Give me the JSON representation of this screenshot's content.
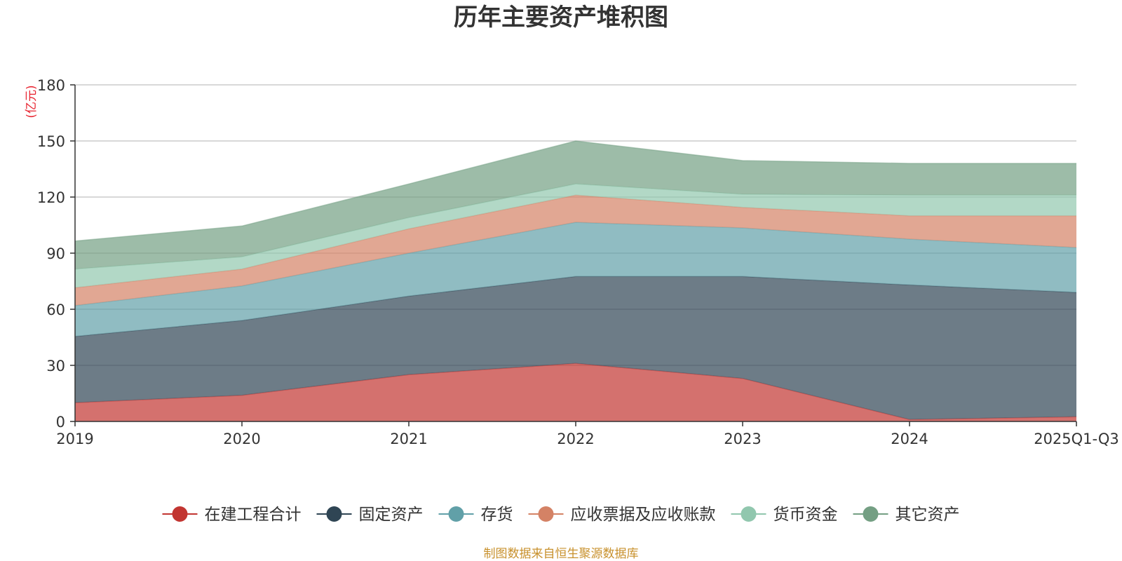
{
  "chart_data": {
    "type": "area",
    "stacked": true,
    "title": "历年主要资产堆积图",
    "unit_label": "(亿元)",
    "categories": [
      "2019",
      "2020",
      "2021",
      "2022",
      "2023",
      "2024",
      "2025Q1-Q3"
    ],
    "ylim": [
      0,
      180
    ],
    "yticks": [
      0,
      30,
      60,
      90,
      120,
      150,
      180
    ],
    "grid": true,
    "legend_position": "bottom",
    "series": [
      {
        "name": "在建工程合计",
        "color": "#c23531",
        "values": [
          10,
          14,
          25,
          31,
          23,
          1,
          2.5
        ]
      },
      {
        "name": "固定资产",
        "color": "#2f4554",
        "values": [
          35.5,
          40,
          42,
          46.5,
          54.5,
          72,
          66.5
        ]
      },
      {
        "name": "存货",
        "color": "#61a0a8",
        "values": [
          16.5,
          18.5,
          23,
          29,
          26,
          24.5,
          24
        ]
      },
      {
        "name": "应收票据及应收账款",
        "color": "#d48265",
        "values": [
          9.5,
          9,
          13,
          14.5,
          11,
          12.5,
          17
        ]
      },
      {
        "name": "货币资金",
        "color": "#91c7ae",
        "values": [
          10,
          6.5,
          6,
          6,
          7,
          11,
          11
        ]
      },
      {
        "name": "其它资产",
        "color": "#749f83",
        "values": [
          15,
          16.5,
          18,
          23,
          18,
          17,
          17
        ]
      }
    ]
  },
  "source_note": "制图数据来自恒生聚源数据库"
}
